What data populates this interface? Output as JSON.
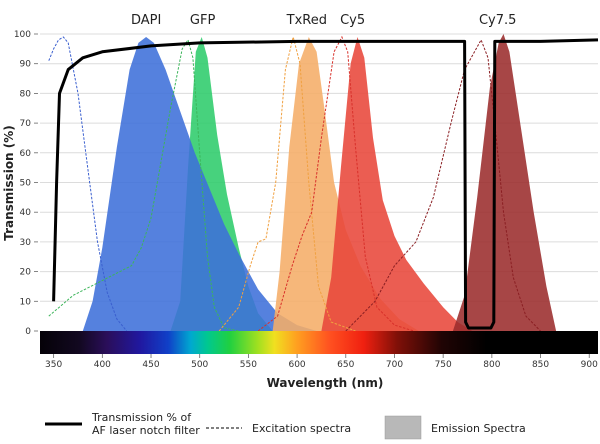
{
  "chart_data": {
    "type": "area",
    "title": "",
    "xlabel": "Wavelength (nm)",
    "ylabel": "Transmission (%)",
    "xlim": [
      336,
      909
    ],
    "ylim": [
      0,
      100
    ],
    "xticks": [
      350,
      400,
      450,
      500,
      550,
      600,
      650,
      700,
      750,
      800,
      850,
      900
    ],
    "yticks": [
      0,
      10,
      20,
      30,
      40,
      50,
      60,
      70,
      80,
      90,
      100
    ],
    "grid": true,
    "dye_labels": [
      {
        "text": "DAPI",
        "x": 445
      },
      {
        "text": "GFP",
        "x": 503
      },
      {
        "text": "TxRed",
        "x": 610
      },
      {
        "text": "Cy5",
        "x": 657
      },
      {
        "text": "Cy7.5",
        "x": 806
      }
    ],
    "filter": {
      "name": "Transmission % of AF laser notch filter",
      "color": "#000000",
      "points": [
        [
          350,
          10
        ],
        [
          353,
          50
        ],
        [
          356,
          80
        ],
        [
          365,
          88
        ],
        [
          380,
          92
        ],
        [
          400,
          94
        ],
        [
          450,
          96
        ],
        [
          500,
          97
        ],
        [
          600,
          97.5
        ],
        [
          700,
          97.5
        ],
        [
          772,
          97.5
        ],
        [
          773,
          3
        ],
        [
          776,
          1
        ],
        [
          799,
          1
        ],
        [
          802,
          3
        ],
        [
          803,
          97.5
        ],
        [
          850,
          97.5
        ],
        [
          909,
          98
        ]
      ]
    },
    "excitation": [
      {
        "dye": "DAPI",
        "color": "#3a5fcf",
        "points": [
          [
            345,
            91
          ],
          [
            350,
            95
          ],
          [
            355,
            98
          ],
          [
            360,
            99
          ],
          [
            365,
            97
          ],
          [
            375,
            80
          ],
          [
            385,
            55
          ],
          [
            395,
            30
          ],
          [
            405,
            13
          ],
          [
            415,
            4
          ],
          [
            425,
            0
          ]
        ]
      },
      {
        "dye": "GFP",
        "color": "#3cb55a",
        "points": [
          [
            345,
            5
          ],
          [
            370,
            12
          ],
          [
            400,
            17
          ],
          [
            430,
            22
          ],
          [
            440,
            28
          ],
          [
            450,
            38
          ],
          [
            470,
            75
          ],
          [
            482,
            95
          ],
          [
            488,
            98
          ],
          [
            493,
            92
          ],
          [
            500,
            60
          ],
          [
            508,
            25
          ],
          [
            515,
            8
          ],
          [
            525,
            1
          ],
          [
            540,
            0
          ]
        ]
      },
      {
        "dye": "TxRed",
        "color": "#f0a040",
        "points": [
          [
            520,
            0
          ],
          [
            540,
            8
          ],
          [
            552,
            22
          ],
          [
            560,
            30
          ],
          [
            568,
            31
          ],
          [
            578,
            50
          ],
          [
            588,
            88
          ],
          [
            596,
            99
          ],
          [
            603,
            90
          ],
          [
            612,
            50
          ],
          [
            622,
            15
          ],
          [
            635,
            3
          ],
          [
            660,
            0
          ]
        ]
      },
      {
        "dye": "Cy5",
        "color": "#d8302a",
        "points": [
          [
            560,
            0
          ],
          [
            580,
            5
          ],
          [
            595,
            22
          ],
          [
            605,
            32
          ],
          [
            615,
            40
          ],
          [
            625,
            65
          ],
          [
            638,
            94
          ],
          [
            646,
            99
          ],
          [
            652,
            94
          ],
          [
            660,
            62
          ],
          [
            670,
            25
          ],
          [
            682,
            8
          ],
          [
            700,
            2
          ],
          [
            720,
            0
          ]
        ]
      },
      {
        "dye": "Cy7.5",
        "color": "#8a1e22",
        "points": [
          [
            650,
            0
          ],
          [
            680,
            10
          ],
          [
            700,
            22
          ],
          [
            722,
            30
          ],
          [
            740,
            45
          ],
          [
            758,
            70
          ],
          [
            772,
            88
          ],
          [
            789,
            98
          ],
          [
            796,
            92
          ],
          [
            803,
            70
          ],
          [
            812,
            40
          ],
          [
            822,
            18
          ],
          [
            835,
            5
          ],
          [
            850,
            0
          ]
        ]
      }
    ],
    "emission": [
      {
        "dye": "GFP",
        "color": "#2ecc6b",
        "points": [
          [
            470,
            0
          ],
          [
            480,
            10
          ],
          [
            488,
            55
          ],
          [
            496,
            94
          ],
          [
            502,
            99
          ],
          [
            508,
            92
          ],
          [
            518,
            66
          ],
          [
            528,
            46
          ],
          [
            540,
            28
          ],
          [
            550,
            15
          ],
          [
            560,
            6
          ],
          [
            575,
            0
          ]
        ]
      },
      {
        "dye": "DAPI",
        "color": "#3e6fd9",
        "points": [
          [
            380,
            0
          ],
          [
            390,
            10
          ],
          [
            400,
            28
          ],
          [
            415,
            62
          ],
          [
            428,
            88
          ],
          [
            437,
            97
          ],
          [
            445,
            99
          ],
          [
            453,
            97
          ],
          [
            465,
            88
          ],
          [
            480,
            74
          ],
          [
            495,
            60
          ],
          [
            510,
            48
          ],
          [
            525,
            36
          ],
          [
            540,
            26
          ],
          [
            560,
            14
          ],
          [
            580,
            6
          ],
          [
            600,
            2
          ],
          [
            620,
            0
          ]
        ]
      },
      {
        "dye": "TxRed",
        "color": "#f5ad68",
        "points": [
          [
            575,
            0
          ],
          [
            582,
            20
          ],
          [
            592,
            62
          ],
          [
            602,
            90
          ],
          [
            612,
            99
          ],
          [
            620,
            94
          ],
          [
            628,
            75
          ],
          [
            638,
            50
          ],
          [
            650,
            34
          ],
          [
            665,
            22
          ],
          [
            685,
            11
          ],
          [
            705,
            4
          ],
          [
            725,
            0
          ]
        ]
      },
      {
        "dye": "Cy5",
        "color": "#e8473a",
        "points": [
          [
            625,
            0
          ],
          [
            635,
            18
          ],
          [
            645,
            55
          ],
          [
            655,
            90
          ],
          [
            662,
            99
          ],
          [
            669,
            92
          ],
          [
            678,
            65
          ],
          [
            688,
            44
          ],
          [
            700,
            32
          ],
          [
            712,
            24
          ],
          [
            730,
            16
          ],
          [
            750,
            8
          ],
          [
            765,
            3
          ],
          [
            780,
            0
          ]
        ]
      },
      {
        "dye": "Cy7.5",
        "color": "#9b2c2c",
        "points": [
          [
            760,
            0
          ],
          [
            772,
            12
          ],
          [
            785,
            45
          ],
          [
            798,
            82
          ],
          [
            807,
            97
          ],
          [
            812,
            100
          ],
          [
            818,
            94
          ],
          [
            830,
            68
          ],
          [
            843,
            40
          ],
          [
            856,
            15
          ],
          [
            866,
            0
          ]
        ]
      }
    ],
    "colorbar": {
      "from": 336,
      "to": 909
    }
  },
  "legend": {
    "filter_label_line1": "Transmission % of",
    "filter_label_line2": "AF laser notch filter",
    "excitation_label": "Excitation spectra",
    "emission_label": "Emission Spectra",
    "emission_swatch_color": "#b8b8b8"
  }
}
